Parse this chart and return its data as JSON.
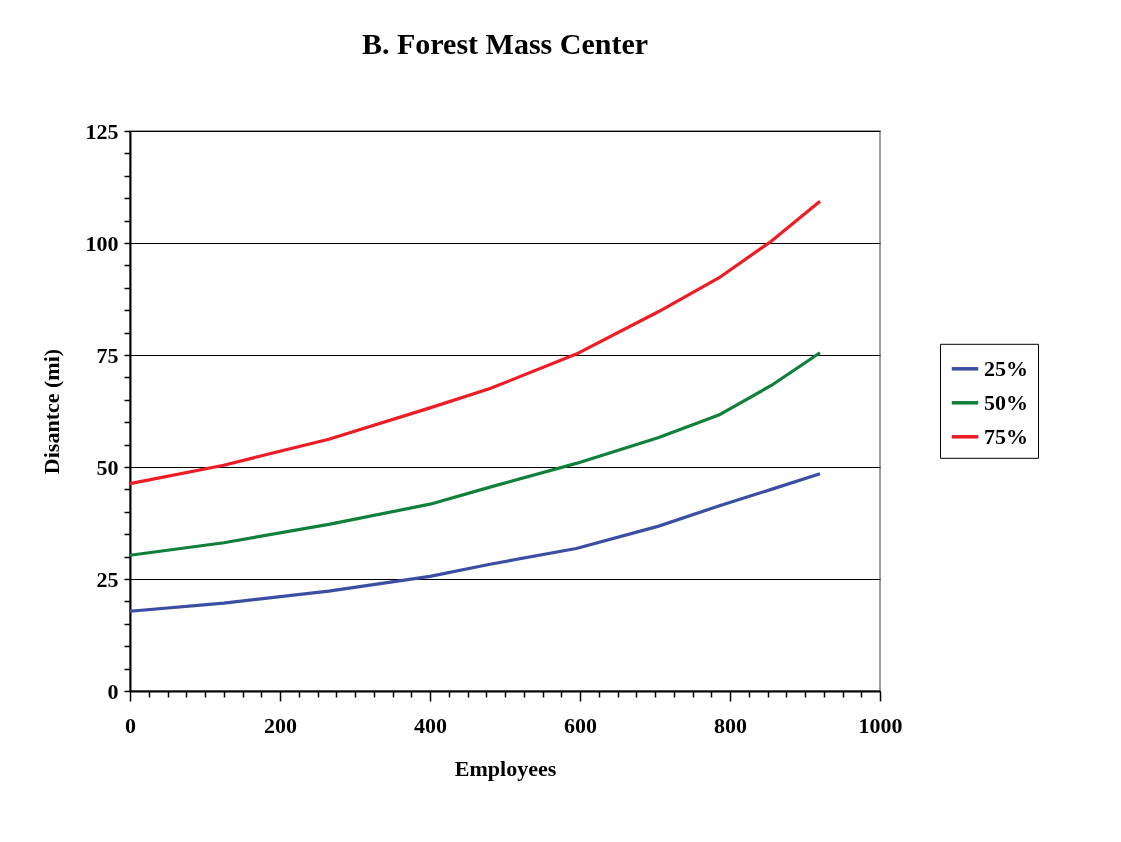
{
  "chart_data": {
    "type": "line",
    "title": "B.  Forest Mass Center",
    "xlabel": "Employees",
    "ylabel": "Disantce (mi)",
    "x": [
      0,
      125,
      265,
      400,
      480,
      595,
      705,
      785,
      855,
      920
    ],
    "series": [
      {
        "name": "25%",
        "color": "#3a4fa3",
        "values": [
          17.8,
          19.6,
          22.3,
          25.6,
          28.3,
          31.8,
          36.8,
          41.3,
          45.0,
          48.5
        ]
      },
      {
        "name": "50%",
        "color": "#10803a",
        "values": [
          30.3,
          33.1,
          37.2,
          41.7,
          45.5,
          50.8,
          56.6,
          61.6,
          68.2,
          75.5
        ]
      },
      {
        "name": "75%",
        "color": "#ee1c25",
        "values": [
          46.3,
          50.4,
          56.2,
          63.2,
          67.5,
          75.2,
          84.7,
          92.2,
          100.4,
          109.3
        ]
      }
    ],
    "xlim": [
      0,
      1000
    ],
    "xticks": [
      0,
      {
        "value": 25,
        "label": null
      },
      {
        "value": 50,
        "label": null
      },
      {
        "value": 75,
        "label": null
      },
      {
        "value": 100,
        "label": null
      },
      {
        "value": 125,
        "label": null
      },
      {
        "value": 150,
        "label": null
      },
      {
        "value": 175,
        "label": null
      },
      200,
      {
        "value": 225,
        "label": null
      },
      {
        "value": 250,
        "label": null
      },
      {
        "value": 275,
        "label": null
      },
      {
        "value": 300,
        "label": null
      },
      {
        "value": 325,
        "label": null
      },
      {
        "value": 350,
        "label": null
      },
      {
        "value": 375,
        "label": null
      },
      400,
      {
        "value": 425,
        "label": null
      },
      {
        "value": 450,
        "label": null
      },
      {
        "value": 475,
        "label": null
      },
      {
        "value": 500,
        "label": null
      },
      {
        "value": 525,
        "label": null
      },
      {
        "value": 550,
        "label": null
      },
      {
        "value": 575,
        "label": null
      },
      600,
      {
        "value": 625,
        "label": null
      },
      {
        "value": 650,
        "label": null
      },
      {
        "value": 675,
        "label": null
      },
      {
        "value": 700,
        "label": null
      },
      {
        "value": 725,
        "label": null
      },
      {
        "value": 750,
        "label": null
      },
      {
        "value": 775,
        "label": null
      },
      800,
      {
        "value": 825,
        "label": null
      },
      {
        "value": 850,
        "label": null
      },
      {
        "value": 875,
        "label": null
      },
      {
        "value": 900,
        "label": null
      },
      {
        "value": 925,
        "label": null
      },
      {
        "value": 950,
        "label": null
      },
      {
        "value": 975,
        "label": null
      },
      1000
    ],
    "ylim": [
      0,
      125
    ],
    "yticks": [
      0,
      {
        "value": 5,
        "label": null
      },
      {
        "value": 10,
        "label": null
      },
      {
        "value": 15,
        "label": null
      },
      {
        "value": 20,
        "label": null
      },
      25,
      {
        "value": 30,
        "label": null
      },
      {
        "value": 35,
        "label": null
      },
      {
        "value": 40,
        "label": null
      },
      {
        "value": 45,
        "label": null
      },
      50,
      {
        "value": 55,
        "label": null
      },
      {
        "value": 60,
        "label": null
      },
      {
        "value": 65,
        "label": null
      },
      {
        "value": 70,
        "label": null
      },
      75,
      {
        "value": 80,
        "label": null
      },
      {
        "value": 85,
        "label": null
      },
      {
        "value": 90,
        "label": null
      },
      {
        "value": 95,
        "label": null
      },
      100,
      {
        "value": 105,
        "label": null
      },
      {
        "value": 110,
        "label": null
      },
      {
        "value": 115,
        "label": null
      },
      {
        "value": 120,
        "label": null
      },
      125
    ],
    "grid": "y",
    "legend": "right",
    "marker": "none",
    "line_style": "solid"
  }
}
